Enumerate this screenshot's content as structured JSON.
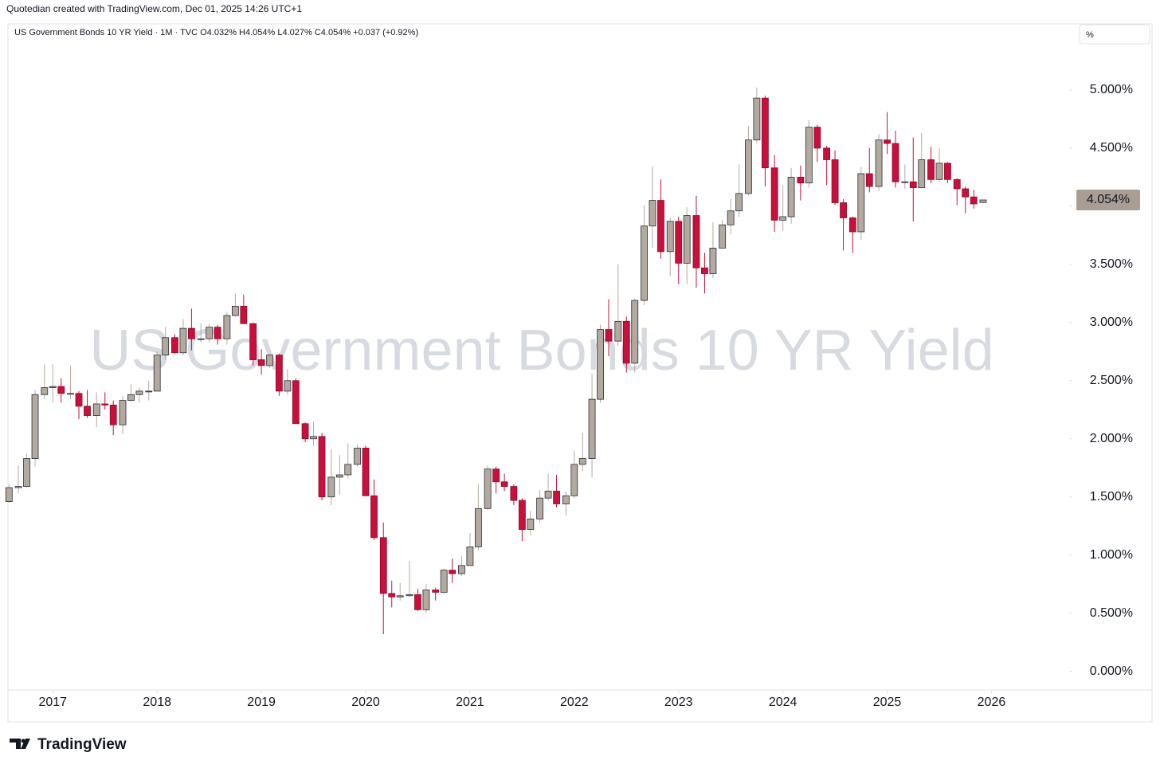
{
  "chart_data": {
    "type": "candlestick",
    "credit": "Quotedian created with TradingView.com, Dec 01, 2025 14:26 UTC+1",
    "title": "US Government Bonds 10 YR Yield",
    "legend_text": "US Government Bonds 10 YR Yield · 1M · TVC  O4.032%  H4.054%  L4.027%  C4.054%  +0.037 (+0.92%)",
    "unit_box": "%",
    "brand": "TradingView",
    "up_color": "#b3aa9f",
    "down_color": "#c8103c",
    "x": [
      2016.58,
      2016.67,
      2016.75,
      2016.83,
      2016.92,
      2017,
      2017.08,
      2017.17,
      2017.25,
      2017.33,
      2017.42,
      2017.5,
      2017.58,
      2017.67,
      2017.75,
      2017.83,
      2017.92,
      2018,
      2018.08,
      2018.17,
      2018.25,
      2018.33,
      2018.42,
      2018.5,
      2018.58,
      2018.67,
      2018.75,
      2018.83,
      2018.92,
      2019,
      2019.08,
      2019.17,
      2019.25,
      2019.33,
      2019.42,
      2019.5,
      2019.58,
      2019.67,
      2019.75,
      2019.83,
      2019.92,
      2020,
      2020.08,
      2020.17,
      2020.25,
      2020.33,
      2020.42,
      2020.5,
      2020.58,
      2020.67,
      2020.75,
      2020.83,
      2020.92,
      2021,
      2021.08,
      2021.17,
      2021.25,
      2021.33,
      2021.42,
      2021.5,
      2021.58,
      2021.67,
      2021.75,
      2021.83,
      2021.92,
      2022,
      2022.08,
      2022.17,
      2022.25,
      2022.33,
      2022.42,
      2022.5,
      2022.58,
      2022.67,
      2022.75,
      2022.83,
      2022.92,
      2023,
      2023.08,
      2023.17,
      2023.25,
      2023.33,
      2023.42,
      2023.5,
      2023.58,
      2023.67,
      2023.75,
      2023.83,
      2023.92,
      2024,
      2024.08,
      2024.17,
      2024.25,
      2024.33,
      2024.42,
      2024.5,
      2024.58,
      2024.67,
      2024.75,
      2024.83,
      2024.92,
      2025,
      2025.08,
      2025.17,
      2025.25,
      2025.33,
      2025.42,
      2025.5,
      2025.58,
      2025.67,
      2025.75,
      2025.83,
      2025.92
    ],
    "open": [
      1.46,
      1.58,
      1.59,
      1.83,
      2.38,
      2.44,
      2.45,
      2.39,
      2.39,
      2.28,
      2.2,
      2.3,
      2.29,
      2.12,
      2.33,
      2.38,
      2.41,
      2.41,
      2.72,
      2.87,
      2.74,
      2.95,
      2.86,
      2.86,
      2.96,
      2.86,
      3.06,
      3.14,
      2.99,
      2.68,
      2.63,
      2.72,
      2.41,
      2.5,
      2.13,
      2.0,
      2.02,
      1.5,
      1.67,
      1.69,
      1.78,
      1.92,
      1.51,
      1.15,
      0.67,
      0.64,
      0.65,
      0.66,
      0.53,
      0.7,
      0.68,
      0.87,
      0.84,
      0.91,
      1.07,
      1.4,
      1.74,
      1.63,
      1.59,
      1.47,
      1.22,
      1.31,
      1.49,
      1.55,
      1.44,
      1.51,
      1.78,
      1.83,
      2.34,
      2.94,
      2.84,
      3.01,
      2.65,
      3.19,
      3.83,
      4.05,
      3.61,
      3.87,
      3.51,
      3.92,
      3.47,
      3.42,
      3.64,
      3.84,
      3.96,
      4.11,
      4.57,
      4.93,
      4.33,
      3.88,
      3.91,
      4.25,
      4.2,
      4.68,
      4.5,
      4.4,
      4.03,
      3.9,
      3.78,
      4.28,
      4.17,
      4.57,
      4.54,
      4.21,
      4.21,
      4.16,
      4.4,
      4.23,
      4.37,
      4.23,
      4.15,
      4.08,
      4.032
    ],
    "high": [
      1.61,
      1.77,
      1.87,
      2.42,
      2.64,
      2.64,
      2.52,
      2.63,
      2.41,
      2.42,
      2.4,
      2.4,
      2.33,
      2.37,
      2.47,
      2.44,
      2.5,
      2.75,
      2.96,
      2.9,
      3.03,
      3.12,
      2.99,
      2.99,
      2.98,
      3.09,
      3.25,
      3.24,
      3.0,
      2.77,
      2.73,
      2.73,
      2.6,
      2.52,
      2.14,
      2.15,
      2.05,
      1.91,
      1.86,
      1.96,
      1.95,
      1.94,
      1.65,
      1.28,
      0.78,
      0.76,
      0.95,
      0.71,
      0.75,
      0.72,
      0.88,
      0.97,
      0.99,
      1.19,
      1.61,
      1.77,
      1.76,
      1.7,
      1.61,
      1.49,
      1.38,
      1.56,
      1.7,
      1.69,
      1.55,
      1.9,
      2.05,
      2.56,
      2.98,
      3.2,
      3.5,
      3.05,
      3.21,
      4.01,
      4.34,
      4.23,
      3.9,
      3.91,
      3.99,
      4.09,
      3.6,
      3.86,
      3.88,
      4.06,
      4.36,
      4.69,
      5.02,
      4.95,
      4.44,
      4.18,
      4.33,
      4.35,
      4.74,
      4.7,
      4.52,
      4.48,
      4.06,
      3.91,
      4.34,
      4.5,
      4.62,
      4.81,
      4.65,
      4.36,
      4.59,
      4.63,
      4.51,
      4.5,
      4.38,
      4.24,
      4.17,
      4.14,
      4.054
    ],
    "low": [
      1.45,
      1.53,
      1.58,
      1.76,
      2.34,
      2.31,
      2.31,
      2.34,
      2.17,
      2.18,
      2.1,
      2.25,
      2.03,
      2.04,
      2.32,
      2.31,
      2.33,
      2.41,
      2.68,
      2.73,
      2.72,
      2.76,
      2.83,
      2.83,
      2.81,
      2.81,
      3.05,
      2.99,
      2.63,
      2.55,
      2.61,
      2.37,
      2.38,
      2.13,
      1.97,
      1.94,
      1.47,
      1.43,
      1.52,
      1.66,
      1.76,
      1.51,
      1.13,
      0.32,
      0.55,
      0.61,
      0.64,
      0.52,
      0.5,
      0.61,
      0.67,
      0.76,
      0.82,
      0.91,
      1.04,
      1.39,
      1.53,
      1.55,
      1.43,
      1.12,
      1.17,
      1.28,
      1.47,
      1.41,
      1.34,
      1.49,
      1.72,
      1.67,
      2.31,
      2.71,
      2.8,
      2.57,
      2.57,
      3.15,
      3.64,
      3.55,
      3.4,
      3.33,
      3.33,
      3.3,
      3.25,
      3.38,
      3.64,
      3.76,
      3.91,
      4.09,
      4.54,
      4.17,
      3.78,
      3.79,
      3.85,
      4.05,
      4.16,
      4.38,
      4.18,
      4.01,
      3.62,
      3.6,
      3.71,
      4.12,
      4.13,
      4.45,
      4.16,
      4.15,
      3.87,
      4.16,
      4.2,
      4.21,
      4.2,
      4.01,
      3.94,
      3.98,
      4.027
    ],
    "close": [
      1.58,
      1.59,
      1.83,
      2.38,
      2.44,
      2.45,
      2.39,
      2.39,
      2.28,
      2.2,
      2.3,
      2.29,
      2.12,
      2.33,
      2.38,
      2.41,
      2.41,
      2.72,
      2.87,
      2.74,
      2.95,
      2.86,
      2.86,
      2.96,
      2.86,
      3.06,
      3.14,
      2.99,
      2.68,
      2.63,
      2.72,
      2.41,
      2.5,
      2.13,
      2.0,
      2.02,
      1.5,
      1.67,
      1.69,
      1.78,
      1.92,
      1.51,
      1.15,
      0.67,
      0.64,
      0.65,
      0.66,
      0.53,
      0.7,
      0.68,
      0.87,
      0.84,
      0.91,
      1.07,
      1.4,
      1.74,
      1.63,
      1.59,
      1.47,
      1.22,
      1.31,
      1.49,
      1.55,
      1.44,
      1.51,
      1.78,
      1.83,
      2.34,
      2.94,
      2.84,
      3.01,
      2.65,
      3.19,
      3.83,
      4.05,
      3.61,
      3.87,
      3.51,
      3.92,
      3.47,
      3.42,
      3.64,
      3.84,
      3.96,
      4.11,
      4.57,
      4.93,
      4.33,
      3.88,
      3.91,
      4.25,
      4.2,
      4.68,
      4.5,
      4.4,
      4.03,
      3.9,
      3.78,
      4.28,
      4.17,
      4.57,
      4.54,
      4.21,
      4.21,
      4.16,
      4.4,
      4.23,
      4.37,
      4.23,
      4.15,
      4.08,
      4.02,
      4.054
    ],
    "last_label": "4.054%",
    "xlim": [
      2016.57,
      2026.73
    ],
    "xticks": [
      2017,
      2018,
      2019,
      2020,
      2021,
      2022,
      2023,
      2024,
      2025,
      2026
    ],
    "ylim": [
      -0.16,
      5.39
    ],
    "yticks": [
      {
        "value": 0,
        "label": "0.000%"
      },
      {
        "value": 0.5,
        "label": "0.500%"
      },
      {
        "value": 1,
        "label": "1.000%"
      },
      {
        "value": 1.5,
        "label": "1.500%"
      },
      {
        "value": 2,
        "label": "2.000%"
      },
      {
        "value": 2.5,
        "label": "2.500%"
      },
      {
        "value": 3,
        "label": "3.000%"
      },
      {
        "value": 3.5,
        "label": "3.500%"
      },
      {
        "value": 4,
        "label": "4.000%"
      },
      {
        "value": 4.5,
        "label": "4.500%"
      },
      {
        "value": 5,
        "label": "5.000%"
      }
    ]
  }
}
